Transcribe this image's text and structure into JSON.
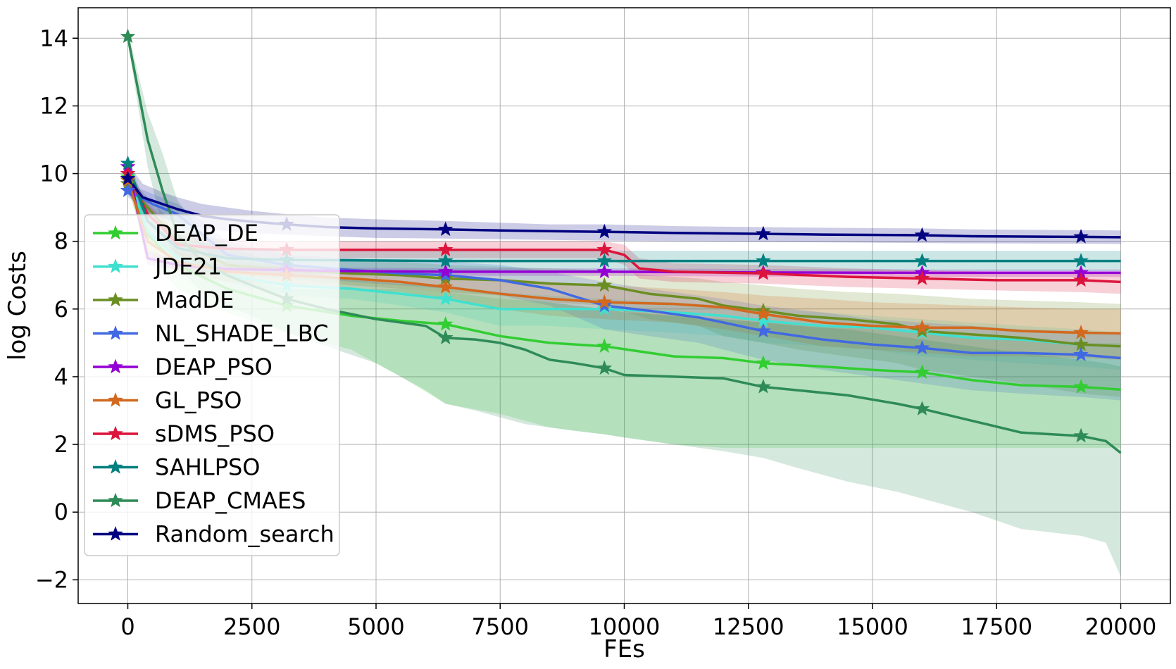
{
  "chart_data": {
    "type": "line",
    "xlabel": "FEs",
    "ylabel": "log Costs",
    "xlim": [
      -1000,
      21000
    ],
    "ylim": [
      -2.7,
      14.9
    ],
    "xticks": [
      0,
      2500,
      5000,
      7500,
      10000,
      12500,
      15000,
      17500,
      20000
    ],
    "xtick_labels": [
      "0",
      "2500",
      "5000",
      "7500",
      "10000",
      "12500",
      "15000",
      "17500",
      "20000"
    ],
    "yticks": [
      -2,
      0,
      2,
      4,
      6,
      8,
      10,
      12,
      14
    ],
    "ytick_labels": [
      "−2",
      "0",
      "2",
      "4",
      "6",
      "8",
      "10",
      "12",
      "14"
    ],
    "grid": true,
    "legend_position": "lower-left",
    "marker_x": [
      0,
      3200,
      6400,
      9600,
      12800,
      16000,
      19200
    ],
    "series": [
      {
        "name": "DEAP_DE",
        "color": "#32cd32",
        "x": [
          0,
          400,
          1000,
          2000,
          3200,
          4500,
          5500,
          6400,
          7500,
          8500,
          9600,
          11000,
          12000,
          12800,
          14000,
          15000,
          16000,
          17000,
          18000,
          19200,
          20000
        ],
        "y": [
          9.9,
          8.2,
          7.3,
          6.6,
          6.1,
          5.8,
          5.65,
          5.55,
          5.2,
          5.0,
          4.9,
          4.6,
          4.55,
          4.4,
          4.3,
          4.2,
          4.13,
          3.9,
          3.75,
          3.7,
          3.62
        ],
        "band_upper": [
          10.1,
          8.6,
          7.7,
          7.0,
          6.6,
          6.6,
          6.6,
          6.5,
          6.3,
          6.2,
          6.0,
          5.8,
          5.7,
          5.6,
          5.5,
          5.4,
          5.3,
          5.2,
          5.1,
          5.0,
          5.0
        ],
        "band_lower": [
          9.6,
          7.6,
          6.6,
          5.9,
          5.3,
          4.8,
          4.0,
          3.2,
          2.9,
          2.5,
          2.3,
          2.0,
          1.9,
          1.9,
          1.9,
          1.9,
          1.9,
          1.9,
          1.9,
          1.9,
          1.9
        ]
      },
      {
        "name": "JDE21",
        "color": "#40e0d0",
        "x": [
          0,
          400,
          1000,
          2000,
          3200,
          4500,
          5500,
          6400,
          7500,
          8500,
          9600,
          11000,
          12000,
          12800,
          14000,
          15000,
          16000,
          17000,
          18000,
          19200,
          20000
        ],
        "y": [
          10.0,
          8.3,
          7.5,
          7.0,
          6.7,
          6.6,
          6.45,
          6.3,
          6.0,
          6.0,
          6.0,
          5.9,
          5.8,
          5.65,
          5.5,
          5.45,
          5.3,
          5.15,
          5.1,
          4.95,
          4.9
        ],
        "band_upper": [
          10.2,
          8.5,
          7.7,
          7.2,
          7.0,
          6.9,
          6.8,
          6.7,
          6.5,
          6.4,
          6.3,
          6.2,
          6.1,
          6.0,
          5.9,
          5.8,
          5.7,
          5.6,
          5.5,
          5.4,
          5.3
        ],
        "band_lower": [
          9.8,
          8.1,
          7.3,
          6.8,
          6.4,
          6.3,
          6.1,
          5.9,
          5.5,
          5.5,
          5.4,
          5.3,
          5.2,
          5.0,
          4.9,
          4.8,
          4.6,
          4.5,
          4.4,
          4.3,
          4.2
        ]
      },
      {
        "name": "MadDE",
        "color": "#6b8e23",
        "x": [
          0,
          400,
          1000,
          2000,
          3200,
          4500,
          5500,
          6400,
          7500,
          8500,
          9600,
          10500,
          11500,
          12000,
          12800,
          13500,
          14500,
          15500,
          16000,
          17000,
          18000,
          19200,
          20000
        ],
        "y": [
          9.7,
          9.0,
          8.0,
          7.3,
          7.15,
          7.05,
          7.0,
          6.9,
          6.85,
          6.75,
          6.7,
          6.45,
          6.3,
          6.1,
          5.95,
          5.8,
          5.7,
          5.55,
          5.35,
          5.25,
          5.15,
          4.95,
          4.9
        ],
        "band_upper": [
          9.9,
          9.3,
          8.4,
          7.6,
          7.45,
          7.4,
          7.4,
          7.3,
          7.25,
          7.2,
          7.15,
          7.0,
          6.9,
          6.8,
          6.7,
          6.6,
          6.5,
          6.45,
          6.4,
          6.3,
          6.25,
          6.2,
          6.15
        ],
        "band_lower": [
          9.5,
          8.7,
          7.6,
          7.0,
          6.9,
          6.7,
          6.6,
          6.5,
          6.4,
          6.2,
          6.1,
          5.7,
          5.5,
          5.2,
          5.0,
          4.8,
          4.6,
          4.4,
          4.2,
          4.0,
          3.8,
          3.5,
          3.4
        ]
      },
      {
        "name": "NL_SHADE_LBC",
        "color": "#4169e1",
        "x": [
          0,
          500,
          1000,
          1500,
          2000,
          3200,
          4500,
          5500,
          6400,
          7500,
          8500,
          9600,
          10500,
          11500,
          12000,
          12800,
          14000,
          15000,
          16000,
          17000,
          18000,
          19200,
          20000
        ],
        "y": [
          9.5,
          9.1,
          8.8,
          8.2,
          7.6,
          7.3,
          7.15,
          7.05,
          7.0,
          6.85,
          6.6,
          6.1,
          5.95,
          5.75,
          5.6,
          5.35,
          5.1,
          4.95,
          4.85,
          4.7,
          4.7,
          4.65,
          4.55
        ],
        "band_upper": [
          9.7,
          9.4,
          9.1,
          8.6,
          8.0,
          7.6,
          7.5,
          7.4,
          7.4,
          7.3,
          7.1,
          6.8,
          6.6,
          6.4,
          6.3,
          6.1,
          5.9,
          5.7,
          5.6,
          5.5,
          5.4,
          5.35,
          5.3
        ],
        "band_lower": [
          9.3,
          8.8,
          8.5,
          7.8,
          7.2,
          7.0,
          6.8,
          6.7,
          6.6,
          6.4,
          6.1,
          5.4,
          5.2,
          5.0,
          4.8,
          4.5,
          4.2,
          4.0,
          3.8,
          3.6,
          3.5,
          3.4,
          3.3
        ]
      },
      {
        "name": "DEAP_PSO",
        "color": "#9400d3",
        "x": [
          0,
          400,
          1000,
          2000,
          3200,
          4500,
          6400,
          9600,
          12800,
          16000,
          19200,
          20000
        ],
        "y": [
          10.2,
          7.5,
          7.3,
          7.18,
          7.15,
          7.12,
          7.1,
          7.1,
          7.08,
          7.07,
          7.07,
          7.07
        ],
        "band_upper": [
          10.4,
          7.7,
          7.45,
          7.3,
          7.25,
          7.22,
          7.2,
          7.2,
          7.18,
          7.17,
          7.17,
          7.17
        ],
        "band_lower": [
          10.0,
          7.3,
          7.15,
          7.05,
          7.03,
          7.0,
          6.98,
          6.98,
          6.96,
          6.95,
          6.95,
          6.95
        ]
      },
      {
        "name": "GL_PSO",
        "color": "#d2691e",
        "x": [
          0,
          400,
          1000,
          2000,
          3200,
          4500,
          5500,
          6400,
          7500,
          8500,
          9600,
          11000,
          12000,
          12800,
          14000,
          15000,
          16000,
          17000,
          18000,
          19200,
          20000
        ],
        "y": [
          9.8,
          8.0,
          7.4,
          7.1,
          7.0,
          6.9,
          6.8,
          6.65,
          6.45,
          6.3,
          6.2,
          6.15,
          6.05,
          5.85,
          5.6,
          5.5,
          5.45,
          5.45,
          5.35,
          5.3,
          5.28
        ],
        "band_upper": [
          10.0,
          8.3,
          7.7,
          7.4,
          7.3,
          7.2,
          7.1,
          7.0,
          6.9,
          6.8,
          6.7,
          6.6,
          6.5,
          6.4,
          6.3,
          6.2,
          6.15,
          6.1,
          6.05,
          6.0,
          6.0
        ],
        "band_lower": [
          9.6,
          7.7,
          7.1,
          6.8,
          6.7,
          6.6,
          6.5,
          6.3,
          6.0,
          5.8,
          5.7,
          5.6,
          5.4,
          5.2,
          4.9,
          4.8,
          4.7,
          4.6,
          4.6,
          4.55,
          4.5
        ]
      },
      {
        "name": "sDMS_PSO",
        "color": "#dc143c",
        "x": [
          0,
          400,
          700,
          1000,
          2000,
          3200,
          6400,
          9600,
          10000,
          10300,
          11000,
          12800,
          14500,
          16000,
          17500,
          19200,
          20000
        ],
        "y": [
          10.0,
          8.8,
          8.4,
          7.9,
          7.78,
          7.75,
          7.75,
          7.75,
          7.6,
          7.2,
          7.1,
          7.05,
          6.95,
          6.9,
          6.85,
          6.85,
          6.8
        ],
        "band_upper": [
          10.2,
          9.1,
          8.7,
          8.2,
          8.05,
          8.0,
          8.0,
          8.0,
          7.9,
          7.5,
          7.35,
          7.3,
          7.2,
          7.15,
          7.1,
          7.1,
          7.05
        ],
        "band_lower": [
          9.8,
          8.5,
          8.1,
          7.6,
          7.5,
          7.5,
          7.5,
          7.5,
          7.3,
          6.9,
          6.8,
          6.75,
          6.65,
          6.6,
          6.55,
          6.5,
          6.45
        ]
      },
      {
        "name": "SAHLPSO",
        "color": "#008080",
        "x": [
          0,
          400,
          1000,
          2000,
          3200,
          6400,
          9600,
          12800,
          16000,
          19200,
          20000
        ],
        "y": [
          10.3,
          8.6,
          7.8,
          7.5,
          7.45,
          7.42,
          7.42,
          7.42,
          7.42,
          7.42,
          7.42
        ],
        "band_upper": [
          10.5,
          8.9,
          8.1,
          7.8,
          7.75,
          7.72,
          7.72,
          7.72,
          7.72,
          7.72,
          7.72
        ],
        "band_lower": [
          10.1,
          8.3,
          7.5,
          7.2,
          7.15,
          7.12,
          7.12,
          7.12,
          7.12,
          7.12,
          7.12
        ]
      },
      {
        "name": "DEAP_CMAES",
        "color": "#2e8b57",
        "x": [
          0,
          400,
          700,
          1000,
          1500,
          2000,
          2500,
          3200,
          4000,
          5000,
          6000,
          6400,
          7000,
          7500,
          8000,
          8500,
          9000,
          9600,
          10000,
          11000,
          12000,
          12800,
          13500,
          14500,
          15500,
          16000,
          17000,
          18000,
          19200,
          19700,
          20000
        ],
        "y": [
          14.05,
          11.0,
          9.5,
          8.2,
          7.4,
          7.0,
          6.7,
          6.3,
          6.0,
          5.7,
          5.5,
          5.15,
          5.1,
          5.0,
          4.8,
          4.5,
          4.4,
          4.25,
          4.05,
          4.0,
          3.95,
          3.7,
          3.6,
          3.45,
          3.2,
          3.05,
          2.7,
          2.35,
          2.25,
          2.1,
          1.75
        ],
        "band_upper": [
          14.2,
          11.8,
          10.6,
          9.2,
          8.3,
          7.9,
          7.6,
          7.3,
          7.0,
          6.8,
          6.7,
          6.6,
          6.5,
          6.4,
          6.3,
          6.2,
          6.1,
          6.0,
          5.9,
          5.8,
          5.7,
          5.6,
          5.5,
          5.4,
          5.2,
          5.1,
          4.9,
          4.7,
          4.5,
          4.4,
          4.3
        ],
        "band_lower": [
          13.9,
          10.2,
          8.4,
          7.2,
          6.5,
          6.1,
          5.8,
          5.3,
          4.9,
          4.4,
          3.6,
          3.2,
          3.0,
          2.8,
          2.6,
          2.5,
          2.4,
          2.3,
          2.2,
          2.0,
          1.8,
          1.6,
          1.3,
          0.9,
          0.6,
          0.4,
          0.0,
          -0.5,
          -0.7,
          -0.9,
          -1.9
        ]
      },
      {
        "name": "Random_search",
        "color": "#000080",
        "x": [
          0,
          300,
          700,
          1000,
          1500,
          2000,
          2500,
          3200,
          4000,
          5000,
          6400,
          7500,
          8500,
          9600,
          11000,
          12800,
          14000,
          16000,
          17000,
          19200,
          20000
        ],
        "y": [
          9.85,
          9.3,
          9.1,
          8.95,
          8.75,
          8.65,
          8.58,
          8.5,
          8.42,
          8.38,
          8.35,
          8.32,
          8.3,
          8.28,
          8.25,
          8.22,
          8.2,
          8.18,
          8.15,
          8.13,
          8.12
        ],
        "band_upper": [
          10.3,
          9.7,
          9.45,
          9.3,
          9.1,
          9.0,
          8.9,
          8.8,
          8.7,
          8.65,
          8.6,
          8.55,
          8.5,
          8.5,
          8.45,
          8.42,
          8.4,
          8.38,
          8.35,
          8.33,
          8.32
        ],
        "band_lower": [
          9.4,
          8.9,
          8.7,
          8.55,
          8.4,
          8.3,
          8.25,
          8.2,
          8.15,
          8.1,
          8.08,
          8.06,
          8.04,
          8.02,
          8.0,
          7.98,
          7.97,
          7.95,
          7.94,
          7.93,
          7.92
        ]
      }
    ]
  }
}
